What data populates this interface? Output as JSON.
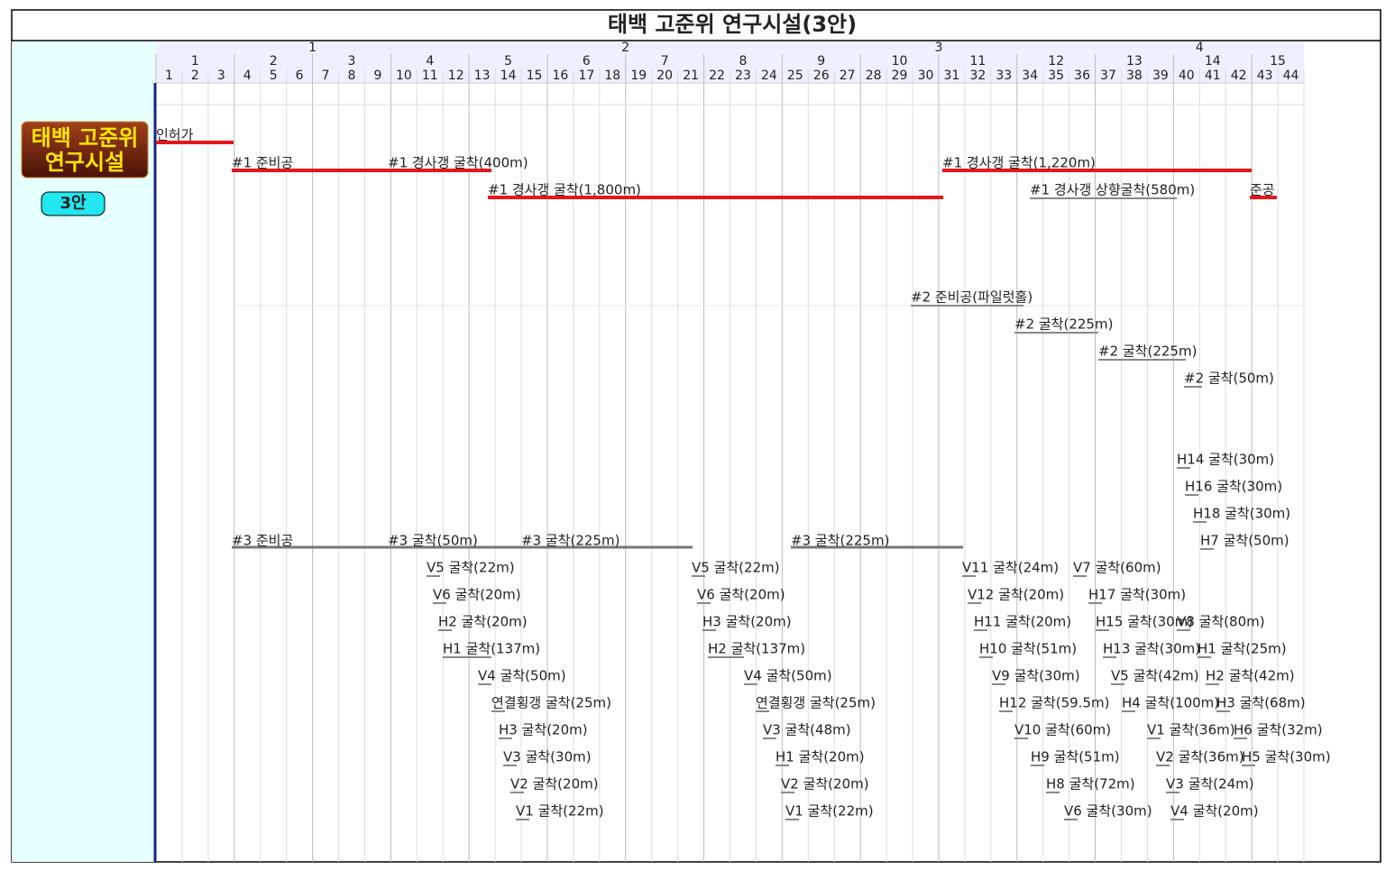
{
  "title": "태백 고준위 연구시설(3안)",
  "header": {
    "years": [
      1,
      2,
      3,
      4
    ],
    "quarters": [
      1,
      2,
      3,
      4,
      5,
      6,
      7,
      8,
      9,
      10,
      11,
      12,
      13,
      14,
      15
    ],
    "months": [
      1,
      2,
      3,
      4,
      5,
      6,
      7,
      8,
      9,
      10,
      11,
      12,
      13,
      14,
      15,
      16,
      17,
      18,
      19,
      20,
      21,
      22,
      23,
      24,
      25,
      26,
      27,
      28,
      29,
      30,
      31,
      32,
      33,
      34,
      35,
      36,
      37,
      38,
      39,
      40,
      41,
      42,
      43,
      44
    ]
  },
  "badge": {
    "lines": [
      "태백 고준위",
      "연구시설"
    ],
    "option": "3안"
  },
  "tasks": [
    {
      "label": "인허가"
    },
    {
      "label": "#1 준비공"
    },
    {
      "label": "#1 경사갱 굴착(400m)"
    },
    {
      "label": "#1 경사갱 굴착(1,220m)"
    },
    {
      "label": "#1 경사갱 굴착(1,800m)"
    },
    {
      "label": "#1 경사갱 상향굴착(580m)"
    },
    {
      "label": "준공"
    },
    {
      "label": "#2 준비공(파일럿홀)"
    },
    {
      "label": "#2 굴착(225m)"
    },
    {
      "label": "#2 굴착(225m)"
    },
    {
      "label": "#2 굴착(50m)"
    },
    {
      "label": "H14 굴착(30m)"
    },
    {
      "label": "H16 굴착(30m)"
    },
    {
      "label": "H18 굴착(30m)"
    },
    {
      "label": "H7 굴착(50m)"
    },
    {
      "label": "#3 준비공"
    },
    {
      "label": "#3 굴착(50m)"
    },
    {
      "label": "#3 굴착(225m)"
    },
    {
      "label": "#3 굴착(225m)"
    },
    {
      "label": "V5 굴착(22m)"
    },
    {
      "label": "V6 굴착(20m)"
    },
    {
      "label": "H2 굴착(20m)"
    },
    {
      "label": "H1 굴착(137m)"
    },
    {
      "label": "V4 굴착(50m)"
    },
    {
      "label": "연결횡갱 굴착(25m)"
    },
    {
      "label": "H3 굴착(20m)"
    },
    {
      "label": "V3 굴착(30m)"
    },
    {
      "label": "V2 굴착(20m)"
    },
    {
      "label": "V1 굴착(22m)"
    },
    {
      "label": "V5 굴착(22m)"
    },
    {
      "label": "V6 굴착(20m)"
    },
    {
      "label": "H3 굴착(20m)"
    },
    {
      "label": "H2 굴착(137m)"
    },
    {
      "label": "V4 굴착(50m)"
    },
    {
      "label": "연결횡갱 굴착(25m)"
    },
    {
      "label": "V3 굴착(48m)"
    },
    {
      "label": "H1 굴착(20m)"
    },
    {
      "label": "V2 굴착(20m)"
    },
    {
      "label": "V1 굴착(22m)"
    },
    {
      "label": "V11 굴착(24m)"
    },
    {
      "label": "V7 굴착(60m)"
    },
    {
      "label": "V12 굴착(20m)"
    },
    {
      "label": "H17 굴착(30m)"
    },
    {
      "label": "H11 굴착(20m)"
    },
    {
      "label": "H15 굴착(30m)"
    },
    {
      "label": "V8 굴착(80m)"
    },
    {
      "label": "H10 굴착(51m)"
    },
    {
      "label": "H13 굴착(30m)"
    },
    {
      "label": "H1 굴착(25m)"
    },
    {
      "label": "V9 굴착(30m)"
    },
    {
      "label": "V5 굴착(42m)"
    },
    {
      "label": "H2 굴착(42m)"
    },
    {
      "label": "H12 굴착(59.5m)"
    },
    {
      "label": "H4 굴착(100m)"
    },
    {
      "label": "H3 굴착(68m)"
    },
    {
      "label": "V10 굴착(60m)"
    },
    {
      "label": "V1 굴착(36m)"
    },
    {
      "label": "H6 굴착(32m)"
    },
    {
      "label": "H9 굴착(51m)"
    },
    {
      "label": "V2 굴착(36m)"
    },
    {
      "label": "H5 굴착(30m)"
    },
    {
      "label": "H8 굴착(72m)"
    },
    {
      "label": "V3 굴착(24m)"
    },
    {
      "label": "V6 굴착(30m)"
    },
    {
      "label": "V4 굴착(20m)"
    }
  ]
}
